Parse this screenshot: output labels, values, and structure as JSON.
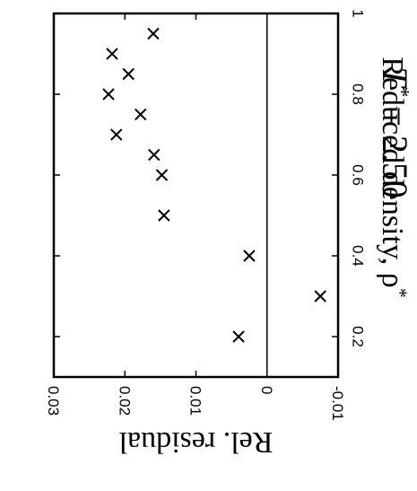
{
  "chart_data": {
    "type": "scatter",
    "title": "T* = 2.50",
    "title_parts": {
      "symbol": "T",
      "sup": "*",
      "rest": " = 2.50"
    },
    "xlabel": "Reduced density, ρ*",
    "xlabel_parts": {
      "main": "Reduced density, ρ",
      "sup": "*"
    },
    "ylabel": "Rel. residual",
    "xlim": [
      0.1,
      1.0
    ],
    "ylim": [
      -0.01,
      0.03
    ],
    "x_ticks": [
      {
        "value": 0.2,
        "label": "0.2"
      },
      {
        "value": 0.4,
        "label": "0.4"
      },
      {
        "value": 0.6,
        "label": "0.6"
      },
      {
        "value": 0.8,
        "label": "0.8"
      },
      {
        "value": 1.0,
        "label": "1"
      }
    ],
    "y_ticks": [
      {
        "value": -0.01,
        "label": "-0.01"
      },
      {
        "value": 0.0,
        "label": "0"
      },
      {
        "value": 0.01,
        "label": "0.01"
      },
      {
        "value": 0.02,
        "label": "0.02"
      },
      {
        "value": 0.03,
        "label": "0.03"
      }
    ],
    "zero_line": true,
    "grid": false,
    "marker": "x",
    "points": [
      {
        "x": 0.2,
        "y": 0.004
      },
      {
        "x": 0.3,
        "y": -0.0075
      },
      {
        "x": 0.4,
        "y": 0.0025
      },
      {
        "x": 0.5,
        "y": 0.0145
      },
      {
        "x": 0.6,
        "y": 0.0148
      },
      {
        "x": 0.65,
        "y": 0.0159
      },
      {
        "x": 0.7,
        "y": 0.0212
      },
      {
        "x": 0.75,
        "y": 0.0178
      },
      {
        "x": 0.8,
        "y": 0.0223
      },
      {
        "x": 0.85,
        "y": 0.0195
      },
      {
        "x": 0.9,
        "y": 0.0218
      },
      {
        "x": 0.95,
        "y": 0.016
      }
    ]
  }
}
